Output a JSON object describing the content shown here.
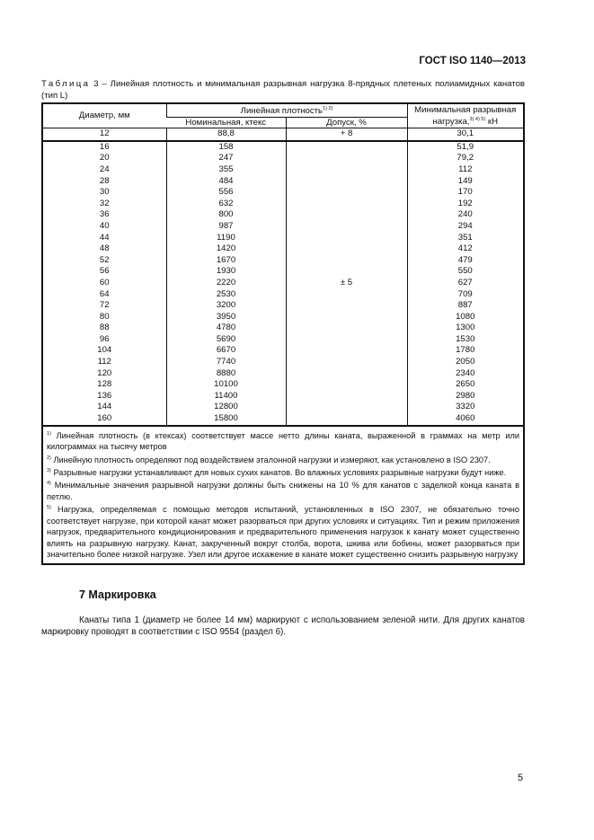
{
  "header": {
    "doc_id": "ГОСТ ISO 1140—2013"
  },
  "table_caption": {
    "label": "Таблица",
    "text": "3 – Линейная плотность и минимальная разрывная нагрузка 8-прядных плетеных полиамидных канатов (тип L)"
  },
  "table": {
    "headers": {
      "diameter": "Диаметр, мм",
      "linear_density": "Линейная плотность",
      "linear_density_refs": "1) 2)",
      "nominal": "Номинальная, ктекс",
      "tolerance": "Допуск, %",
      "min_load": "Минимальная разрывная",
      "min_load_line2": "нагрузка,",
      "min_load_refs": "3) 4) 5)",
      "min_load_unit": "кН"
    },
    "first_row": {
      "diameter": "12",
      "nominal": "88,8",
      "tolerance": "+ 8",
      "load": "30,1"
    },
    "tolerance_rest": "± 5",
    "rows": [
      [
        "16",
        "158",
        "51,9"
      ],
      [
        "20",
        "247",
        "79,2"
      ],
      [
        "24",
        "355",
        "112"
      ],
      [
        "28",
        "484",
        "149"
      ],
      [
        "30",
        "556",
        "170"
      ],
      [
        "32",
        "632",
        "192"
      ],
      [
        "36",
        "800",
        "240"
      ],
      [
        "40",
        "987",
        "294"
      ],
      [
        "44",
        "1190",
        "351"
      ],
      [
        "48",
        "1420",
        "412"
      ],
      [
        "52",
        "1670",
        "479"
      ],
      [
        "56",
        "1930",
        "550"
      ],
      [
        "60",
        "2220",
        "627"
      ],
      [
        "64",
        "2530",
        "709"
      ],
      [
        "72",
        "3200",
        "887"
      ],
      [
        "80",
        "3950",
        "1080"
      ],
      [
        "88",
        "4780",
        "1300"
      ],
      [
        "96",
        "5690",
        "1530"
      ],
      [
        "104",
        "6670",
        "1780"
      ],
      [
        "112",
        "7740",
        "2050"
      ],
      [
        "120",
        "8880",
        "2340"
      ],
      [
        "128",
        "10100",
        "2650"
      ],
      [
        "136",
        "11400",
        "2980"
      ],
      [
        "144",
        "12800",
        "3320"
      ],
      [
        "160",
        "15800",
        "4060"
      ]
    ],
    "footnotes": [
      {
        "mark": "1)",
        "text": "Линейная плотность (в ктексах) соответствует массе нетто длины каната, выраженной в граммах на метр или килограммах на тысячу метров"
      },
      {
        "mark": "2)",
        "text": "Линейную плотность определяют под воздействием эталонной нагрузки и измеряют, как установлено в ISO 2307."
      },
      {
        "mark": "3)",
        "text": "Разрывные нагрузки устанавливают для новых сухих канатов. Во влажных условиях разрывные нагрузки будут ниже."
      },
      {
        "mark": "4)",
        "text": "Минимальные значения разрывной нагрузки должны быть снижены на 10 % для канатов с заделкой конца каната в петлю."
      },
      {
        "mark": "5)",
        "text": "Нагрузка, определяемая с помощью методов испытаний, установленных в ISO 2307, не обязательно точно соответствует нагрузке, при которой канат может разорваться при других условиях и ситуациях. Тип и режим приложения нагрузок, предварительного кондиционирования и предварительного применения нагрузок к канату может существенно влиять на разрывную нагрузку. Канат, закрученный вокруг столба, ворота, шкива или бобины, может разорваться при значительно более низкой нагрузке. Узел или другое искажение в канате может существенно снизить разрывную нагрузку"
      }
    ]
  },
  "section": {
    "title": "7 Маркировка",
    "paragraph": "Канаты типа 1 (диаметр не более 14 мм) маркируют с использованием зеленой нити. Для других канатов маркировку проводят в соответствии с ISO 9554 (раздел 6)."
  },
  "page_number": "5"
}
